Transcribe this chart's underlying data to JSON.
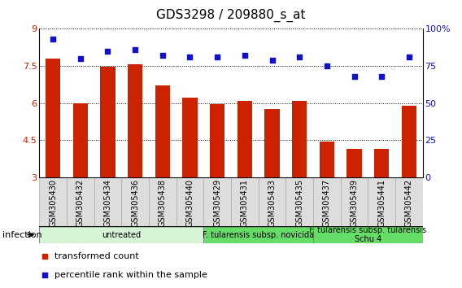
{
  "title": "GDS3298 / 209880_s_at",
  "categories": [
    "GSM305430",
    "GSM305432",
    "GSM305434",
    "GSM305436",
    "GSM305438",
    "GSM305440",
    "GSM305429",
    "GSM305431",
    "GSM305433",
    "GSM305435",
    "GSM305437",
    "GSM305439",
    "GSM305441",
    "GSM305442"
  ],
  "bar_values": [
    7.8,
    6.0,
    7.45,
    7.55,
    6.7,
    6.2,
    5.95,
    6.1,
    5.75,
    6.1,
    4.45,
    4.15,
    4.15,
    5.9
  ],
  "dot_values": [
    93,
    80,
    85,
    86,
    82,
    81,
    81,
    82,
    79,
    81,
    75,
    68,
    68,
    81
  ],
  "bar_color": "#cc2200",
  "dot_color": "#1111cc",
  "ylim_left": [
    3,
    9
  ],
  "ylim_right": [
    0,
    100
  ],
  "yticks_left": [
    3,
    4.5,
    6,
    7.5,
    9
  ],
  "yticks_right": [
    0,
    25,
    50,
    75,
    100
  ],
  "ytick_labels_right": [
    "0",
    "25",
    "50",
    "75",
    "100%"
  ],
  "groups": [
    {
      "label": "untreated",
      "start": 0,
      "end": 6,
      "color": "#d6f5d6"
    },
    {
      "label": "F. tularensis subsp. novicida",
      "start": 6,
      "end": 10,
      "color": "#66dd66"
    },
    {
      "label": "F. tularensis subsp. tularensis\nSchu 4",
      "start": 10,
      "end": 14,
      "color": "#66dd66"
    }
  ],
  "infection_label": "infection",
  "legend_bar": "transformed count",
  "legend_dot": "percentile rank within the sample",
  "title_fontsize": 11,
  "axis_tick_fontsize": 8,
  "label_fontsize": 7,
  "group_fontsize": 7,
  "legend_fontsize": 8
}
